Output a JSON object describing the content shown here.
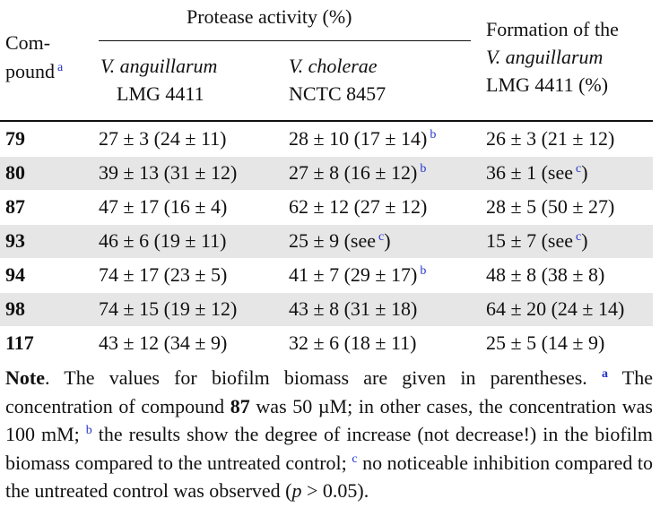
{
  "header": {
    "compound_line1": "Com-",
    "compound_line2": "pound",
    "compound_sup": "a",
    "protease": "Protease activity (%)",
    "col1_line1": "V. anguillarum",
    "col1_line2": "LMG 4411",
    "col2_line1": "V. cholerae",
    "col2_line2": "NCTC 8457",
    "col3_line1": "Formation of the",
    "col3_line2": "V. anguillarum",
    "col3_line3": "LMG 4411 (%)"
  },
  "table": {
    "rows": [
      {
        "compound": "79",
        "cells": [
          {
            "text": "27 ± 3 (24 ± 11)"
          },
          {
            "text": "28 ± 10 (17 ± 14)",
            "sup": "b"
          },
          {
            "text": "26 ± 3 (21 ± 12)"
          }
        ]
      },
      {
        "compound": "80",
        "cells": [
          {
            "text": "39 ± 13 (31 ± 12)"
          },
          {
            "text": "27 ± 8 (16 ± 12)",
            "sup": "b"
          },
          {
            "text": "36 ± 1 (see",
            "sup": "c",
            "after": ")"
          }
        ]
      },
      {
        "compound": "87",
        "cells": [
          {
            "text": "47 ± 17 (16 ± 4)"
          },
          {
            "text": "62 ± 12 (27 ± 12)"
          },
          {
            "text": "28 ± 5 (50 ± 27)"
          }
        ]
      },
      {
        "compound": "93",
        "cells": [
          {
            "text": "46 ± 6 (19 ± 11)"
          },
          {
            "text": "25 ± 9 (see",
            "sup": "c",
            "after": ")"
          },
          {
            "text": "15 ± 7 (see",
            "sup": "c",
            "after": ")"
          }
        ]
      },
      {
        "compound": "94",
        "cells": [
          {
            "text": "74 ± 17 (23 ± 5)"
          },
          {
            "text": "41 ± 7 (29 ± 17)",
            "sup": "b"
          },
          {
            "text": "48 ± 8 (38 ± 8)"
          }
        ]
      },
      {
        "compound": "98",
        "cells": [
          {
            "text": "74 ± 15 (19 ± 12)"
          },
          {
            "text": "43 ± 8 (31 ± 18)"
          },
          {
            "text": "64 ± 20 (24 ± 14)"
          }
        ]
      },
      {
        "compound": "117",
        "cells": [
          {
            "text": "43 ± 12 (34 ± 9)"
          },
          {
            "text": "32 ± 6 (18 ± 11)"
          },
          {
            "text": "25 ± 5 (14 ± 9)"
          }
        ]
      }
    ]
  },
  "note": {
    "label": "Note",
    "text1": ". The values for biofilm biomass are given in parentheses. ",
    "sup_a": "a",
    "text2": " The concentration of compound ",
    "compound": "87",
    "text3": " was 50 µM; in other cases, the concentration was 100 mM; ",
    "sup_b": "b",
    "text4": " the results show the degree of increase (not decrease!) in the biofilm biomass compared to the untreated control; ",
    "sup_c": "c",
    "text5": " no noticeable inhibition compared to the untreated control was observed (",
    "p": "p",
    "text6": " > 0.05)."
  }
}
